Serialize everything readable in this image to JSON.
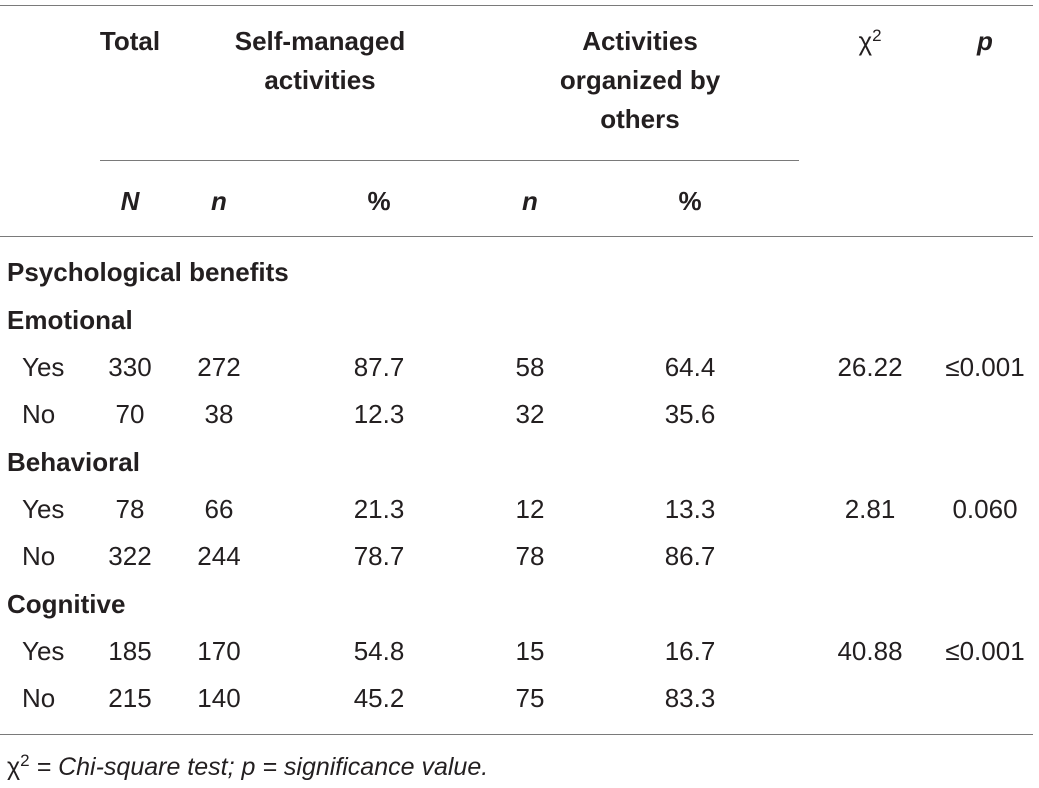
{
  "header": {
    "total": "Total",
    "self_managed": [
      "Self-managed",
      "activities"
    ],
    "organized": [
      "Activities",
      "organized by",
      "others"
    ],
    "chi": "χ",
    "chi_sup": "2",
    "p": "p"
  },
  "subheader": {
    "N": "N",
    "n1": "n",
    "pct1": "%",
    "n2": "n",
    "pct2": "%"
  },
  "section_title": "Psychological benefits",
  "groups": [
    {
      "label": "Emotional",
      "rows": [
        {
          "label": "Yes",
          "N": "330",
          "n1": "272",
          "pct1": "87.7",
          "n2": "58",
          "pct2": "64.4",
          "chi": "26.22",
          "p": "≤0.001"
        },
        {
          "label": "No",
          "N": "70",
          "n1": "38",
          "pct1": "12.3",
          "n2": "32",
          "pct2": "35.6",
          "chi": "",
          "p": ""
        }
      ]
    },
    {
      "label": "Behavioral",
      "rows": [
        {
          "label": "Yes",
          "N": "78",
          "n1": "66",
          "pct1": "21.3",
          "n2": "12",
          "pct2": "13.3",
          "chi": "2.81",
          "p": "0.060"
        },
        {
          "label": "No",
          "N": "322",
          "n1": "244",
          "pct1": "78.7",
          "n2": "78",
          "pct2": "86.7",
          "chi": "",
          "p": ""
        }
      ]
    },
    {
      "label": "Cognitive",
      "rows": [
        {
          "label": "Yes",
          "N": "185",
          "n1": "170",
          "pct1": "54.8",
          "n2": "15",
          "pct2": "16.7",
          "chi": "40.88",
          "p": "≤0.001"
        },
        {
          "label": "No",
          "N": "215",
          "n1": "140",
          "pct1": "45.2",
          "n2": "75",
          "pct2": "83.3",
          "chi": "",
          "p": ""
        }
      ]
    }
  ],
  "footnote": {
    "chi": "χ",
    "chi_sup": "2",
    "text": " = Chi-square test; p = significance value."
  }
}
